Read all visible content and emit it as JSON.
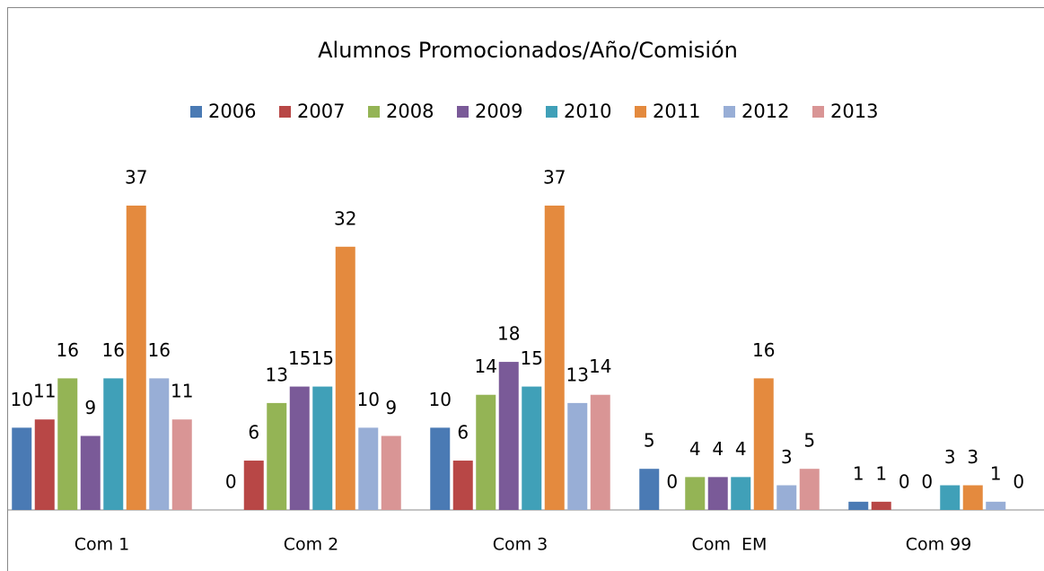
{
  "chart_data": {
    "type": "bar",
    "title": "Alumnos Promocionados/Año/Comisión",
    "categories": [
      "Com 1",
      "Com 2",
      "Com 3",
      "Com  EM",
      "Com 99"
    ],
    "series": [
      {
        "name": "2006",
        "color": "#4a7ab4",
        "values": [
          10,
          0,
          10,
          5,
          1
        ]
      },
      {
        "name": "2007",
        "color": "#b84746",
        "values": [
          11,
          6,
          6,
          0,
          1
        ]
      },
      {
        "name": "2008",
        "color": "#94b455",
        "values": [
          16,
          13,
          14,
          4,
          0
        ]
      },
      {
        "name": "2009",
        "color": "#7a5a98",
        "values": [
          9,
          15,
          18,
          4,
          0
        ]
      },
      {
        "name": "2010",
        "color": "#40a0b8",
        "values": [
          16,
          15,
          15,
          4,
          3
        ]
      },
      {
        "name": "2011",
        "color": "#e48a3e",
        "values": [
          37,
          32,
          37,
          16,
          3
        ]
      },
      {
        "name": "2012",
        "color": "#98aed6",
        "values": [
          16,
          10,
          13,
          3,
          1
        ]
      },
      {
        "name": "2013",
        "color": "#d99595",
        "values": [
          11,
          9,
          14,
          5,
          0
        ]
      }
    ],
    "legend": "top"
  }
}
